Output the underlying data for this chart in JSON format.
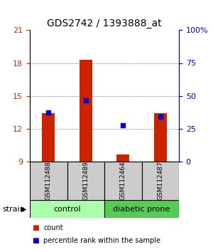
{
  "title": "GDS2742 / 1393888_at",
  "samples": [
    "GSM112488",
    "GSM112489",
    "GSM112464",
    "GSM112487"
  ],
  "counts": [
    13.4,
    18.3,
    9.6,
    13.4
  ],
  "percentile_values": [
    13.5,
    14.6,
    12.3,
    13.1
  ],
  "ylim_left": [
    9,
    21
  ],
  "yticks_left": [
    9,
    12,
    15,
    18,
    21
  ],
  "ylim_right": [
    0,
    100
  ],
  "yticks_right": [
    0,
    25,
    50,
    75,
    100
  ],
  "bar_color": "#cc2200",
  "marker_color": "#0000cc",
  "bar_width": 0.35,
  "groups": [
    {
      "label": "control",
      "samples_idx": [
        0,
        1
      ],
      "color": "#aaffaa"
    },
    {
      "label": "diabetic prone",
      "samples_idx": [
        2,
        3
      ],
      "color": "#55cc55"
    }
  ],
  "left_axis_color": "#cc2200",
  "right_axis_color": "#0000cc",
  "dotted_line_color": "#555555",
  "bg_color": "#ffffff",
  "label_area_color": "#cccccc",
  "strain_label": "strain",
  "legend": [
    {
      "label": "count",
      "color": "#cc2200"
    },
    {
      "label": "percentile rank within the sample",
      "color": "#0000cc"
    }
  ],
  "title_fontsize": 10,
  "tick_fontsize": 8,
  "sample_fontsize": 6.5,
  "group_fontsize": 8
}
